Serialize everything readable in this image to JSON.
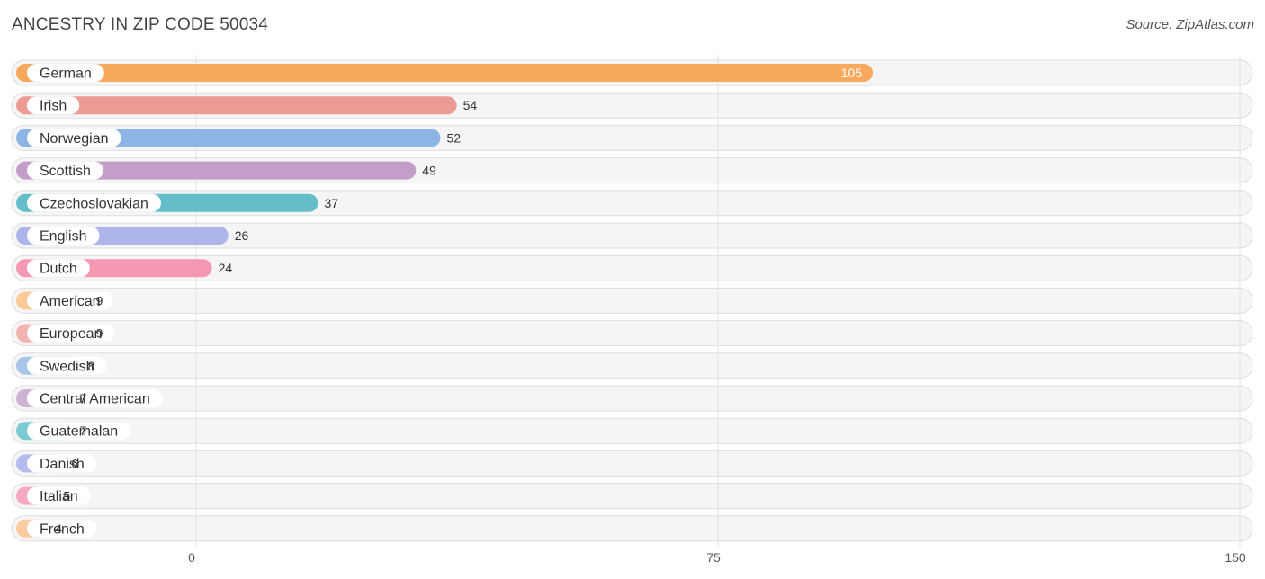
{
  "chart_data": {
    "type": "bar",
    "orientation": "horizontal",
    "title": "ANCESTRY IN ZIP CODE 50034",
    "source": "Source: ZipAtlas.com",
    "categories": [
      "German",
      "Irish",
      "Norwegian",
      "Scottish",
      "Czechoslovakian",
      "English",
      "Dutch",
      "American",
      "European",
      "Swedish",
      "Central American",
      "Guatemalan",
      "Danish",
      "Italian",
      "French"
    ],
    "values": [
      105,
      54,
      52,
      49,
      37,
      26,
      24,
      9,
      9,
      8,
      7,
      7,
      6,
      5,
      4
    ],
    "value_labels": [
      "105",
      "54",
      "52",
      "49",
      "37",
      "26",
      "24",
      "9",
      "9",
      "8",
      "7",
      "7",
      "6",
      "5",
      "4"
    ],
    "colors": [
      "#f9a95e",
      "#ec9a94",
      "#8cb4e4",
      "#c29ec8",
      "#63bec9",
      "#adb5ea",
      "#f598b4",
      "#fcc99a",
      "#f2b2ae",
      "#a8c5ea",
      "#cdb2d4",
      "#7ccad3",
      "#b4bbee",
      "#f7a8c3",
      "#fdcba0"
    ],
    "xlim": [
      0,
      150
    ],
    "xticks": [
      0,
      75,
      150
    ],
    "xtick_labels": [
      "0",
      "75",
      "150"
    ],
    "xlabel": "",
    "ylabel": "",
    "grid": true
  }
}
